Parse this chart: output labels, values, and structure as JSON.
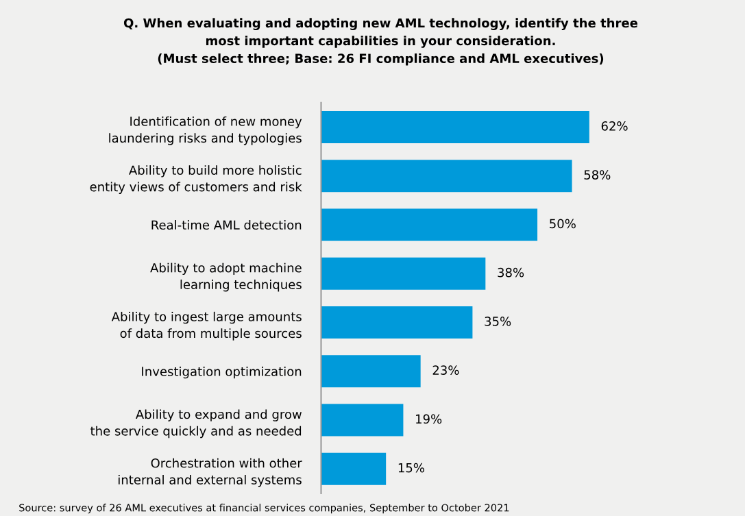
{
  "chart_data": {
    "type": "bar",
    "orientation": "horizontal",
    "title": "Q. When evaluating and adopting new AML technology, identify the three\nmost important capabilities in your consideration.\n(Must select three; Base: 26 FI compliance and AML executives)",
    "categories": [
      "Identification of new money\nlaundering risks and typologies",
      "Ability to build more holistic\nentity views of customers and risk",
      "Real-time AML detection",
      "Ability to adopt machine\nlearning techniques",
      "Ability to ingest large amounts\nof data from multiple sources",
      "Investigation optimization",
      "Ability to expand and grow\nthe service quickly and as needed",
      "Orchestration with other\ninternal and external systems"
    ],
    "values": [
      62,
      58,
      50,
      38,
      35,
      23,
      19,
      15
    ],
    "value_labels": [
      "62%",
      "58%",
      "50%",
      "38%",
      "35%",
      "23%",
      "19%",
      "15%"
    ],
    "color": "#009ada",
    "tick_labels": "y",
    "grid": false,
    "legend": false,
    "annotations": [
      "Source: survey of 26 AML executives at financial services companies, September to October 2021"
    ]
  }
}
